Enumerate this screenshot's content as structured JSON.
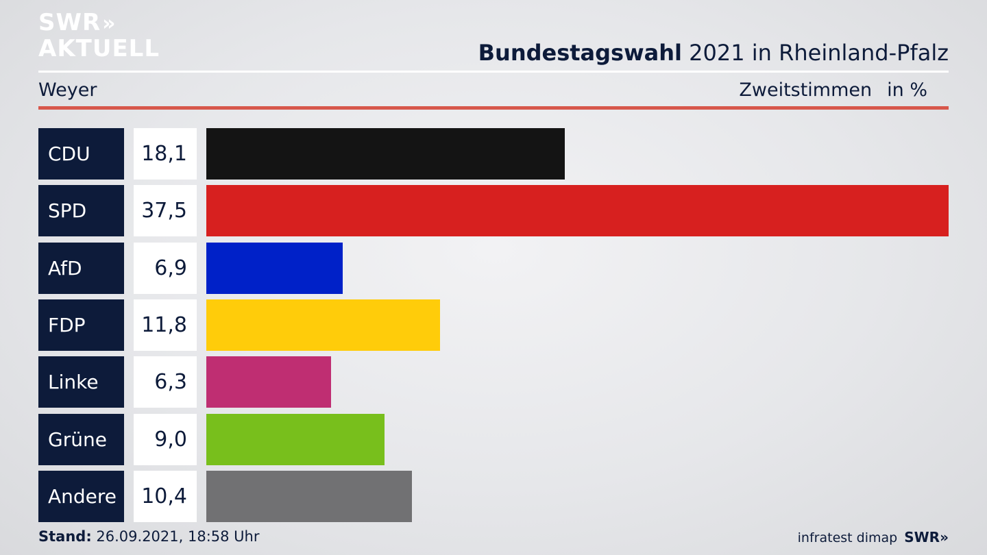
{
  "logo": {
    "line1": "SWR",
    "chevrons": "»",
    "line2": "AKTUELL"
  },
  "header": {
    "title_bold": "Bundestagswahl",
    "title_rest": " 2021 in Rheinland-Pfalz",
    "location": "Weyer",
    "measure": "Zweitstimmen",
    "unit": "in %"
  },
  "chart_data": {
    "type": "bar",
    "orientation": "horizontal",
    "categories": [
      "CDU",
      "SPD",
      "AfD",
      "FDP",
      "Linke",
      "Grüne",
      "Andere"
    ],
    "values": [
      18.1,
      37.5,
      6.9,
      11.8,
      6.3,
      9.0,
      10.4
    ],
    "value_labels": [
      "18,1",
      "37,5",
      "6,9",
      "11,8",
      "6,3",
      "9,0",
      "10,4"
    ],
    "colors": [
      "#141414",
      "#d7201f",
      "#0021c8",
      "#ffcc0a",
      "#bf2e72",
      "#78bf1c",
      "#717173"
    ],
    "xlim": [
      0,
      37.5
    ],
    "grid": false
  },
  "footer": {
    "stand_label": "Stand:",
    "stand_value": " 26.09.2021, 18:58 Uhr",
    "source": "infratest dimap",
    "brand": "SWR»"
  }
}
